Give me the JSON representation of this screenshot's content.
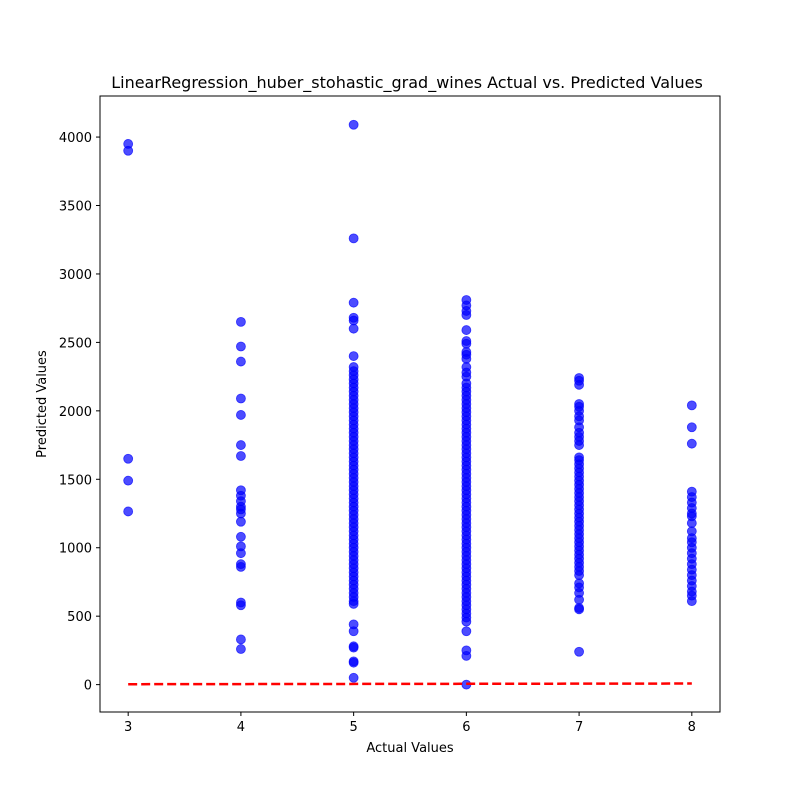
{
  "chart_data": {
    "type": "scatter",
    "title": "LinearRegression_huber_stohastic_grad_wines Actual vs. Predicted Values",
    "xlabel": "Actual Values",
    "ylabel": "Predicted Values",
    "xlim": [
      2.75,
      8.25
    ],
    "ylim": [
      -200,
      4300
    ],
    "xticks": [
      3,
      4,
      5,
      6,
      7,
      8
    ],
    "yticks": [
      0,
      500,
      1000,
      1500,
      2000,
      2500,
      3000,
      3500,
      4000
    ],
    "grid": false,
    "point_color": "#0000ff",
    "point_opacity": 0.7,
    "line_color": "#ff0000",
    "points": {
      "3": [
        3950,
        3900,
        1650,
        1490,
        1265
      ],
      "4": [
        2650,
        2470,
        2360,
        2090,
        1970,
        1750,
        1670,
        1420,
        1380,
        1340,
        1300,
        1280,
        1250,
        1190,
        1080,
        1010,
        960,
        880,
        860,
        600,
        580,
        330,
        260
      ],
      "5": [
        4090,
        3260,
        2790,
        2680,
        2660,
        2600,
        2400,
        2320,
        2290,
        2260,
        2230,
        2200,
        2170,
        2140,
        2110,
        2080,
        2050,
        2020,
        1990,
        1960,
        1930,
        1900,
        1870,
        1840,
        1810,
        1780,
        1750,
        1720,
        1690,
        1660,
        1630,
        1600,
        1570,
        1540,
        1510,
        1480,
        1450,
        1420,
        1390,
        1360,
        1330,
        1300,
        1270,
        1240,
        1210,
        1180,
        1150,
        1120,
        1090,
        1060,
        1030,
        1000,
        970,
        940,
        910,
        880,
        850,
        820,
        790,
        760,
        730,
        700,
        670,
        640,
        610,
        590,
        440,
        390,
        280,
        270,
        170,
        160,
        50
      ],
      "6": [
        2810,
        2770,
        2730,
        2700,
        2590,
        2510,
        2490,
        2430,
        2410,
        2380,
        2320,
        2280,
        2250,
        2200,
        2170,
        2140,
        2110,
        2080,
        2050,
        2020,
        1990,
        1960,
        1930,
        1900,
        1870,
        1840,
        1810,
        1780,
        1750,
        1720,
        1690,
        1660,
        1630,
        1600,
        1570,
        1540,
        1510,
        1480,
        1450,
        1420,
        1390,
        1360,
        1330,
        1300,
        1270,
        1240,
        1210,
        1180,
        1150,
        1120,
        1090,
        1060,
        1030,
        1000,
        970,
        940,
        910,
        880,
        850,
        820,
        790,
        760,
        730,
        700,
        670,
        640,
        610,
        580,
        550,
        520,
        490,
        460,
        390,
        250,
        210,
        0
      ],
      "7": [
        2240,
        2220,
        2190,
        2050,
        2030,
        2000,
        1960,
        1930,
        1880,
        1840,
        1810,
        1780,
        1750,
        1660,
        1640,
        1610,
        1580,
        1550,
        1520,
        1490,
        1460,
        1430,
        1400,
        1370,
        1340,
        1310,
        1280,
        1250,
        1220,
        1190,
        1160,
        1130,
        1100,
        1070,
        1040,
        1010,
        980,
        950,
        920,
        890,
        860,
        830,
        800,
        740,
        710,
        670,
        620,
        560,
        550,
        240
      ],
      "8": [
        2040,
        1880,
        1760,
        1410,
        1370,
        1330,
        1290,
        1250,
        1230,
        1180,
        1120,
        1070,
        1040,
        1000,
        960,
        920,
        880,
        840,
        800,
        760,
        720,
        680,
        650,
        610
      ]
    },
    "line_x": [
      3,
      8
    ],
    "line_y": [
      3,
      8
    ]
  }
}
